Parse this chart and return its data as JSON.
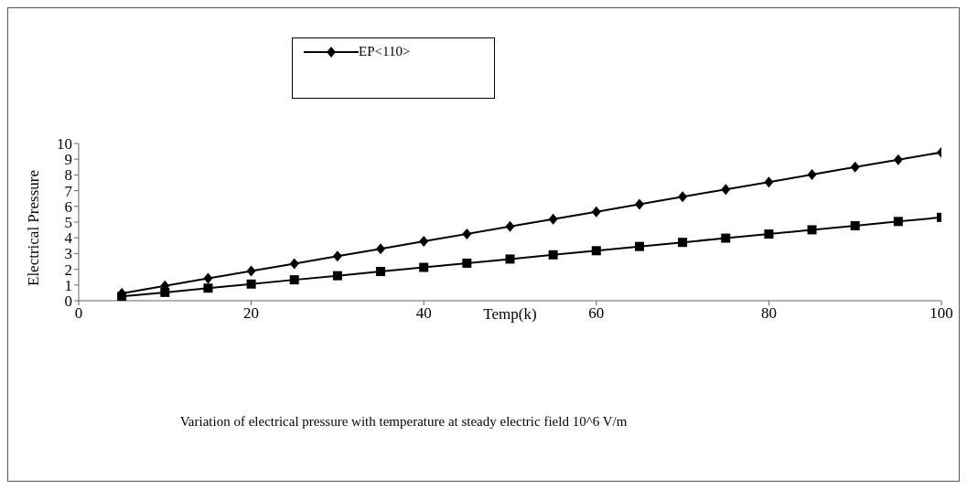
{
  "chart_data": {
    "type": "line",
    "ylabel": "Electrical Pressure",
    "xlabel": "Temp(k)",
    "annotations": [
      "Variation of electrical pressure with temperature at steady electric field 10^6 V/m"
    ],
    "x": [
      5,
      10,
      15,
      20,
      25,
      30,
      35,
      40,
      45,
      50,
      55,
      60,
      65,
      70,
      75,
      80,
      85,
      90,
      95,
      100
    ],
    "series": [
      {
        "name": "EP<110>",
        "color": "#000000",
        "marker": "diamond",
        "values": [
          0.47,
          0.94,
          1.42,
          1.89,
          2.36,
          2.83,
          3.3,
          3.78,
          4.25,
          4.72,
          5.19,
          5.66,
          6.14,
          6.61,
          7.08,
          7.55,
          8.02,
          8.5,
          8.97,
          9.44
        ]
      },
      {
        "color": "#000000",
        "marker": "square",
        "values": [
          0.27,
          0.53,
          0.8,
          1.06,
          1.33,
          1.59,
          1.86,
          2.12,
          2.39,
          2.65,
          2.92,
          3.18,
          3.45,
          3.71,
          3.98,
          4.24,
          4.51,
          4.77,
          5.04,
          5.3
        ]
      }
    ],
    "xlim": [
      0,
      100
    ],
    "xticks": [
      0,
      20,
      40,
      60,
      80,
      100
    ],
    "ylim": [
      0,
      10
    ],
    "yticks": [
      0,
      1,
      2,
      3,
      4,
      5,
      6,
      7,
      8,
      9,
      10
    ],
    "grid": false,
    "legend": "top",
    "line_style": "solid"
  }
}
